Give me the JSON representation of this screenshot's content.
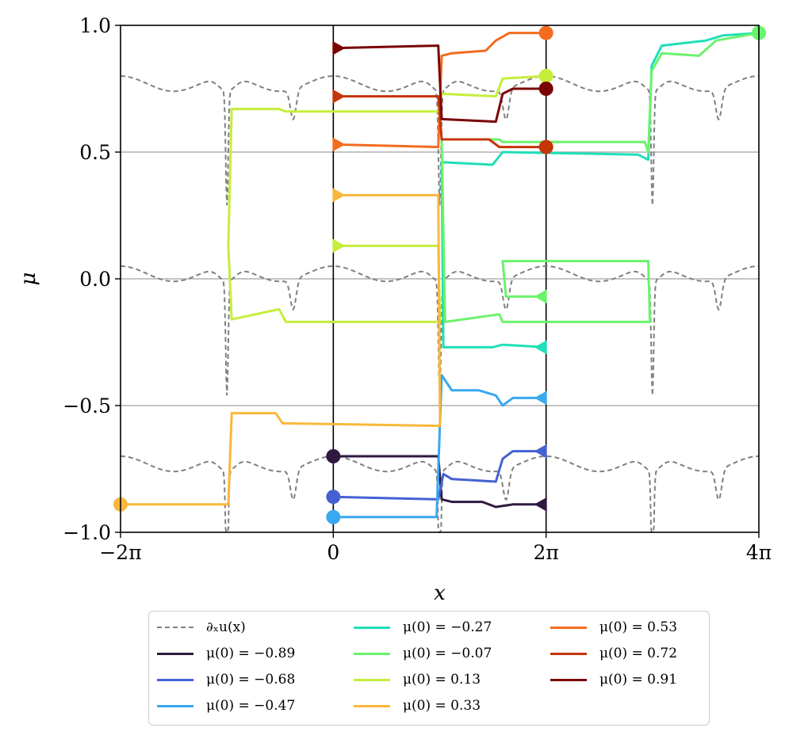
{
  "chart_data": {
    "type": "line",
    "title": "",
    "xlabel": "x",
    "ylabel": "μ",
    "xlim": [
      -6.2832,
      12.5664
    ],
    "ylim": [
      -1.0,
      1.0
    ],
    "x_ticks": [
      {
        "value": -6.2832,
        "label": "−2π"
      },
      {
        "value": 0,
        "label": "0"
      },
      {
        "value": 6.2832,
        "label": "2π"
      },
      {
        "value": 12.5664,
        "label": "4π"
      }
    ],
    "y_ticks": [
      {
        "value": -1.0,
        "label": "−1.0"
      },
      {
        "value": -0.5,
        "label": "−0.5"
      },
      {
        "value": 0.0,
        "label": "0.0"
      },
      {
        "value": 0.5,
        "label": "0.5"
      },
      {
        "value": 1.0,
        "label": "1.0"
      }
    ],
    "hgrid": [
      -0.5,
      0.0,
      0.5
    ],
    "vlines": [
      0,
      6.2832
    ],
    "reference_curve": {
      "name": "∂ₓu(x)",
      "color": "#808080",
      "style": "dashed",
      "offsets": [
        0.77,
        0.02,
        -0.73
      ],
      "amplitude": 0.0
    },
    "legend": {
      "location": "below",
      "entries": [
        {
          "label": "∂ₓu(x)",
          "color": "#808080",
          "dashed": true
        },
        {
          "label": "μ(0) = −0.89",
          "color": "#2f1940"
        },
        {
          "label": "μ(0) = −0.68",
          "color": "#4461d4"
        },
        {
          "label": "μ(0) = −0.47",
          "color": "#38a8f0"
        },
        {
          "label": "μ(0) = −0.27",
          "color": "#1fdfb8"
        },
        {
          "label": "μ(0) = −0.07",
          "color": "#6af36c"
        },
        {
          "label": "μ(0) = 0.13",
          "color": "#c5ee3a"
        },
        {
          "label": "μ(0) = 0.33",
          "color": "#f9b83b"
        },
        {
          "label": "μ(0) = 0.53",
          "color": "#f36b1f"
        },
        {
          "label": "μ(0) = 0.72",
          "color": "#c53507"
        },
        {
          "label": "μ(0) = 0.91",
          "color": "#7a0403"
        }
      ]
    },
    "series": [
      {
        "name": "μ(0) = −0.89",
        "color": "#2f1940",
        "points": [
          [
            0,
            -0.7
          ],
          [
            3.1,
            -0.7
          ],
          [
            3.2,
            -0.87
          ],
          [
            3.5,
            -0.88
          ],
          [
            4.4,
            -0.88
          ],
          [
            4.8,
            -0.9
          ],
          [
            5.3,
            -0.89
          ],
          [
            6.2832,
            -0.89
          ]
        ],
        "start": {
          "x": 0,
          "y": -0.7,
          "marker": "circle"
        },
        "end": {
          "x": 6.2832,
          "y": -0.89,
          "marker": "triangle-left"
        }
      },
      {
        "name": "μ(0) = −0.68",
        "color": "#4461d4",
        "points": [
          [
            0,
            -0.86
          ],
          [
            3.1,
            -0.87
          ],
          [
            3.25,
            -0.77
          ],
          [
            3.5,
            -0.79
          ],
          [
            4.8,
            -0.8
          ],
          [
            5.0,
            -0.71
          ],
          [
            5.3,
            -0.68
          ],
          [
            6.2832,
            -0.68
          ]
        ],
        "start": {
          "x": 0,
          "y": -0.86,
          "marker": "circle"
        },
        "end": {
          "x": 6.2832,
          "y": -0.68,
          "marker": "triangle-left"
        }
      },
      {
        "name": "μ(0) = −0.47",
        "color": "#38a8f0",
        "points": [
          [
            0,
            -0.94
          ],
          [
            3.05,
            -0.94
          ],
          [
            3.2,
            -0.38
          ],
          [
            3.5,
            -0.44
          ],
          [
            4.3,
            -0.44
          ],
          [
            4.8,
            -0.46
          ],
          [
            5.0,
            -0.5
          ],
          [
            5.3,
            -0.47
          ],
          [
            6.2832,
            -0.47
          ]
        ],
        "start": {
          "x": 0,
          "y": -0.94,
          "marker": "circle"
        },
        "end": {
          "x": 6.2832,
          "y": -0.47,
          "marker": "triangle-left"
        }
      },
      {
        "name": "μ(0) = −0.27",
        "color": "#1fdfb8",
        "points": [
          [
            6.2832,
            -0.27
          ],
          [
            5.0,
            -0.26
          ],
          [
            4.7,
            -0.27
          ],
          [
            3.5,
            -0.27
          ],
          [
            3.25,
            -0.27
          ],
          [
            3.2,
            0.46
          ],
          [
            4.7,
            0.45
          ],
          [
            5.0,
            0.5
          ],
          [
            9.0,
            0.49
          ],
          [
            9.3,
            0.47
          ],
          [
            9.4,
            0.84
          ],
          [
            9.7,
            0.92
          ],
          [
            11.0,
            0.94
          ],
          [
            11.5,
            0.96
          ],
          [
            12.5664,
            0.97
          ]
        ],
        "start": {
          "x": 6.2832,
          "y": -0.27,
          "marker": "triangle-left"
        },
        "end": {
          "x": 12.5664,
          "y": 0.97,
          "marker": "circle"
        }
      },
      {
        "name": "μ(0) = −0.07",
        "color": "#6af36c",
        "points": [
          [
            6.2832,
            -0.07
          ],
          [
            5.1,
            -0.07
          ],
          [
            5.0,
            0.07
          ],
          [
            9.3,
            0.07
          ],
          [
            9.35,
            -0.17
          ],
          [
            5.0,
            -0.17
          ],
          [
            4.9,
            -0.14
          ],
          [
            3.3,
            -0.17
          ],
          [
            3.2,
            0.55
          ],
          [
            4.9,
            0.55
          ],
          [
            5.0,
            0.54
          ],
          [
            9.2,
            0.54
          ],
          [
            9.3,
            0.5
          ],
          [
            9.4,
            0.82
          ],
          [
            9.7,
            0.89
          ],
          [
            10.8,
            0.88
          ],
          [
            11.3,
            0.94
          ],
          [
            12.5664,
            0.97
          ]
        ],
        "start": {
          "x": 6.2832,
          "y": -0.07,
          "marker": "triangle-left"
        },
        "end": {
          "x": 12.5664,
          "y": 0.97,
          "marker": "circle"
        }
      },
      {
        "name": "μ(0) = 0.13",
        "color": "#c5ee3a",
        "points": [
          [
            0,
            0.13
          ],
          [
            3.1,
            0.13
          ],
          [
            3.15,
            -0.17
          ],
          [
            -1.4,
            -0.17
          ],
          [
            -1.6,
            -0.12
          ],
          [
            -3.0,
            -0.16
          ],
          [
            -3.1,
            0.13
          ],
          [
            -3.0,
            0.67
          ],
          [
            -1.6,
            0.67
          ],
          [
            -1.4,
            0.66
          ],
          [
            3.1,
            0.66
          ],
          [
            3.2,
            0.73
          ],
          [
            4.8,
            0.72
          ],
          [
            5.0,
            0.79
          ],
          [
            6.2832,
            0.8
          ]
        ],
        "start": {
          "x": 0,
          "y": 0.13,
          "marker": "triangle-right"
        },
        "end": {
          "x": 6.2832,
          "y": 0.8,
          "marker": "circle"
        }
      },
      {
        "name": "μ(0) = 0.33",
        "color": "#f9b83b",
        "points": [
          [
            0,
            0.33
          ],
          [
            3.1,
            0.33
          ],
          [
            3.15,
            -0.58
          ],
          [
            -1.5,
            -0.57
          ],
          [
            -1.7,
            -0.53
          ],
          [
            -3.0,
            -0.53
          ],
          [
            -3.1,
            -0.89
          ],
          [
            -6.2832,
            -0.89
          ]
        ],
        "start": {
          "x": 0,
          "y": 0.33,
          "marker": "triangle-right"
        },
        "end": {
          "x": -6.2832,
          "y": -0.89,
          "marker": "circle"
        }
      },
      {
        "name": "μ(0) = 0.53",
        "color": "#f36b1f",
        "points": [
          [
            0,
            0.53
          ],
          [
            3.1,
            0.52
          ],
          [
            3.2,
            0.88
          ],
          [
            3.5,
            0.89
          ],
          [
            4.5,
            0.9
          ],
          [
            4.8,
            0.94
          ],
          [
            5.2,
            0.97
          ],
          [
            6.2832,
            0.97
          ]
        ],
        "start": {
          "x": 0,
          "y": 0.53,
          "marker": "triangle-right"
        },
        "end": {
          "x": 6.2832,
          "y": 0.97,
          "marker": "circle"
        }
      },
      {
        "name": "μ(0) = 0.72",
        "color": "#c53507",
        "points": [
          [
            0,
            0.72
          ],
          [
            3.1,
            0.72
          ],
          [
            3.2,
            0.55
          ],
          [
            4.6,
            0.55
          ],
          [
            4.9,
            0.52
          ],
          [
            6.2832,
            0.52
          ]
        ],
        "start": {
          "x": 0,
          "y": 0.72,
          "marker": "triangle-right"
        },
        "end": {
          "x": 6.2832,
          "y": 0.52,
          "marker": "circle"
        }
      },
      {
        "name": "μ(0) = 0.91",
        "color": "#7a0403",
        "points": [
          [
            0,
            0.91
          ],
          [
            3.1,
            0.92
          ],
          [
            3.2,
            0.63
          ],
          [
            4.8,
            0.62
          ],
          [
            5.0,
            0.73
          ],
          [
            5.3,
            0.75
          ],
          [
            6.2832,
            0.75
          ]
        ],
        "start": {
          "x": 0,
          "y": 0.91,
          "marker": "triangle-right"
        },
        "end": {
          "x": 6.2832,
          "y": 0.75,
          "marker": "circle"
        }
      }
    ]
  }
}
